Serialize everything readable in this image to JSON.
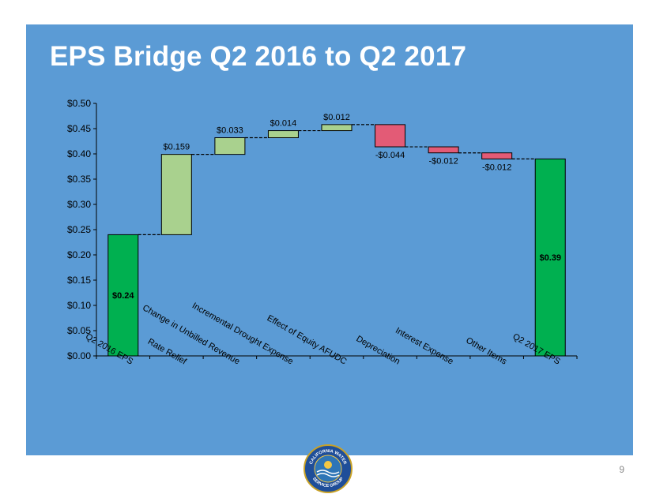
{
  "slide": {
    "title": "EPS Bridge Q2 2016 to Q2 2017",
    "page_number": "9",
    "logo_text": "CALIFORNIA WATER SERVICE GROUP"
  },
  "colors": {
    "panel": "#5b9bd5",
    "total": "#00b050",
    "increase": "#a9d18e",
    "decrease": "#e35b76"
  },
  "chart_data": {
    "type": "bar",
    "subtype": "waterfall",
    "title": "",
    "xlabel": "",
    "ylabel": "",
    "ylim": [
      0,
      0.5
    ],
    "yticks": [
      0.0,
      0.05,
      0.1,
      0.15,
      0.2,
      0.25,
      0.3,
      0.35,
      0.4,
      0.45,
      0.5
    ],
    "ytick_labels": [
      "$0.00",
      "$0.05",
      "$0.10",
      "$0.15",
      "$0.20",
      "$0.25",
      "$0.30",
      "$0.35",
      "$0.40",
      "$0.45",
      "$0.50"
    ],
    "categories": [
      "Q2 2016 EPS",
      "Rate Relief",
      "Change in Unbilled Revenue",
      "Incremental Drought Expense",
      "Effect of Equity AFUDC",
      "Depreciation",
      "Interest Expense",
      "Other Items",
      "Q2 2017 EPS"
    ],
    "values": [
      0.24,
      0.159,
      0.033,
      0.014,
      0.012,
      -0.044,
      -0.012,
      -0.012,
      0.39
    ],
    "kinds": [
      "total",
      "increase",
      "increase",
      "increase",
      "increase",
      "decrease",
      "decrease",
      "decrease",
      "total"
    ],
    "data_labels": [
      "$0.24",
      "$0.159",
      "$0.033",
      "$0.014",
      "$0.012",
      "-$0.044",
      "-$0.012",
      "-$0.012",
      "$0.39"
    ],
    "connectors": true,
    "grid": false,
    "legend": "none"
  }
}
